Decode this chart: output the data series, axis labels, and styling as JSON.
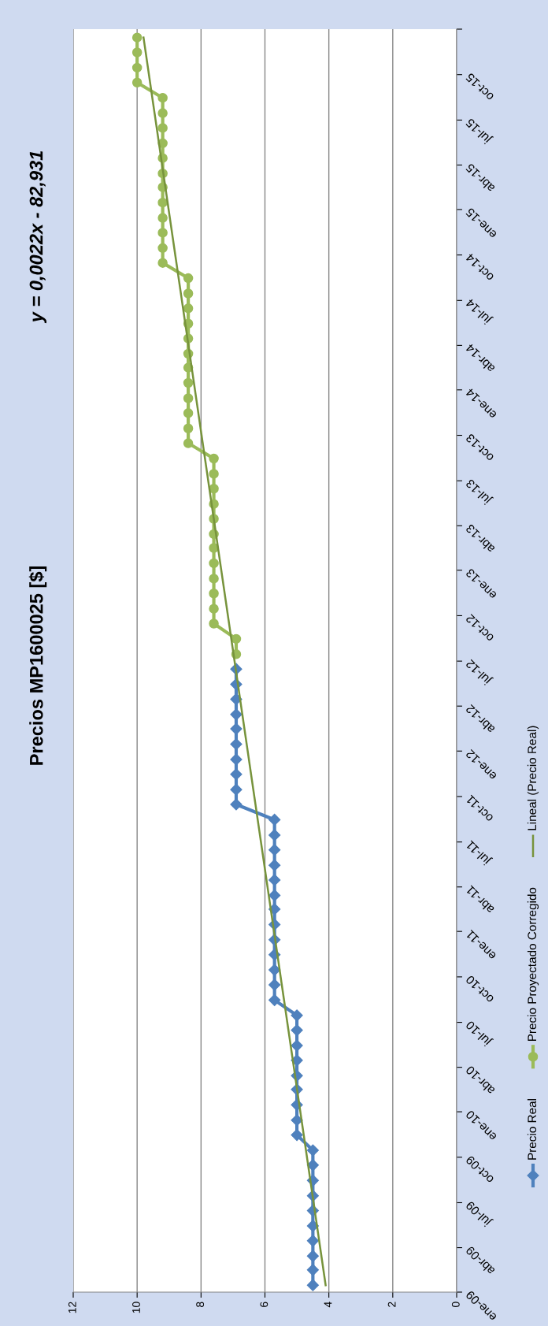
{
  "chart_data": {
    "type": "line",
    "title": "Precios MP1600025 [$]",
    "annotations": [
      "y = 0,0022x - 82,931"
    ],
    "orientation": "horizontal",
    "ylim": [
      "2009-01-01",
      "2016-01-01"
    ],
    "yticks": [
      {
        "value": "2009-01-01",
        "label": "ene-09"
      },
      {
        "value": "2009-04-01",
        "label": "abr-09"
      },
      {
        "value": "2009-07-01",
        "label": "jul-09"
      },
      {
        "value": "2009-10-01",
        "label": "oct-09"
      },
      {
        "value": "2010-01-01",
        "label": "ene-10"
      },
      {
        "value": "2010-04-01",
        "label": "abr-10"
      },
      {
        "value": "2010-07-01",
        "label": "jul-10"
      },
      {
        "value": "2010-10-01",
        "label": "oct-10"
      },
      {
        "value": "2011-01-01",
        "label": "ene-11"
      },
      {
        "value": "2011-04-01",
        "label": "abr-11"
      },
      {
        "value": "2011-07-01",
        "label": "jul-11"
      },
      {
        "value": "2011-10-01",
        "label": "oct-11"
      },
      {
        "value": "2012-01-01",
        "label": "ene-12"
      },
      {
        "value": "2012-04-01",
        "label": "abr-12"
      },
      {
        "value": "2012-07-01",
        "label": "jul-12"
      },
      {
        "value": "2012-10-01",
        "label": "oct-12"
      },
      {
        "value": "2013-01-01",
        "label": "ene-13"
      },
      {
        "value": "2013-04-01",
        "label": "abr-13"
      },
      {
        "value": "2013-07-01",
        "label": "jul-13"
      },
      {
        "value": "2013-10-01",
        "label": "oct-13"
      },
      {
        "value": "2014-01-01",
        "label": "ene-14"
      },
      {
        "value": "2014-04-01",
        "label": "abr-14"
      },
      {
        "value": "2014-07-01",
        "label": "jul-14"
      },
      {
        "value": "2014-10-01",
        "label": "oct-14"
      },
      {
        "value": "2015-01-01",
        "label": "ene-15"
      },
      {
        "value": "2015-04-01",
        "label": "abr-15"
      },
      {
        "value": "2015-07-01",
        "label": "jul-15"
      },
      {
        "value": "2015-10-01",
        "label": "oct-15"
      },
      {
        "value": "2016-01-01",
        "label": null
      }
    ],
    "xlim": [
      12,
      0
    ],
    "xticks": [
      0,
      2,
      4,
      6,
      8,
      10,
      12
    ],
    "grid": "x",
    "legend": "right",
    "series": [
      {
        "name": "Precio Real",
        "color": "#4f81bd",
        "marker": "diamond",
        "x": [
          "2009-01-15",
          "2009-02-15",
          "2009-03-15",
          "2009-04-15",
          "2009-05-15",
          "2009-06-15",
          "2009-07-15",
          "2009-08-15",
          "2009-09-15",
          "2009-10-15",
          "2009-11-15",
          "2009-12-15",
          "2010-01-15",
          "2010-02-15",
          "2010-03-15",
          "2010-04-15",
          "2010-05-15",
          "2010-06-15",
          "2010-07-15",
          "2010-08-15",
          "2010-09-15",
          "2010-10-15",
          "2010-11-15",
          "2010-12-15",
          "2011-01-15",
          "2011-02-15",
          "2011-03-15",
          "2011-04-15",
          "2011-05-15",
          "2011-06-15",
          "2011-07-15",
          "2011-08-15",
          "2011-09-15",
          "2011-10-15",
          "2011-11-15",
          "2011-12-15",
          "2012-01-15",
          "2012-02-15",
          "2012-03-15",
          "2012-04-15",
          "2012-05-15",
          "2012-06-15"
        ],
        "values": [
          4.5,
          4.5,
          4.5,
          4.5,
          4.5,
          4.5,
          4.5,
          4.5,
          4.5,
          4.5,
          5.0,
          5.0,
          5.0,
          5.0,
          5.0,
          5.0,
          5.0,
          5.0,
          5.0,
          5.7,
          5.7,
          5.7,
          5.7,
          5.7,
          5.7,
          5.7,
          5.7,
          5.7,
          5.7,
          5.7,
          5.7,
          5.7,
          6.9,
          6.9,
          6.9,
          6.9,
          6.9,
          6.9,
          6.9,
          6.9,
          6.9,
          6.9
        ]
      },
      {
        "name": "Precio Proyectado Corregido",
        "color": "#9bbb59",
        "marker": "circle",
        "x": [
          "2012-07-15",
          "2012-08-15",
          "2012-09-15",
          "2012-10-15",
          "2012-11-15",
          "2012-12-15",
          "2013-01-15",
          "2013-02-15",
          "2013-03-15",
          "2013-04-15",
          "2013-05-15",
          "2013-06-15",
          "2013-07-15",
          "2013-08-15",
          "2013-09-15",
          "2013-10-15",
          "2013-11-15",
          "2013-12-15",
          "2014-01-15",
          "2014-02-15",
          "2014-03-15",
          "2014-04-15",
          "2014-05-15",
          "2014-06-15",
          "2014-07-15",
          "2014-08-15",
          "2014-09-15",
          "2014-10-15",
          "2014-11-15",
          "2014-12-15",
          "2015-01-15",
          "2015-02-15",
          "2015-03-15",
          "2015-04-15",
          "2015-05-15",
          "2015-06-15",
          "2015-07-15",
          "2015-08-15",
          "2015-09-15",
          "2015-10-15",
          "2015-11-15",
          "2015-12-15"
        ],
        "values": [
          6.9,
          6.9,
          7.6,
          7.6,
          7.6,
          7.6,
          7.6,
          7.6,
          7.6,
          7.6,
          7.6,
          7.6,
          7.6,
          7.6,
          8.4,
          8.4,
          8.4,
          8.4,
          8.4,
          8.4,
          8.4,
          8.4,
          8.4,
          8.4,
          8.4,
          8.4,
          9.2,
          9.2,
          9.2,
          9.2,
          9.2,
          9.2,
          9.2,
          9.2,
          9.2,
          9.2,
          9.2,
          9.2,
          10.0,
          10.0,
          10.0,
          10.0
        ]
      },
      {
        "name": "Lineal (Precio Real)",
        "color": "#77933c",
        "marker": "none",
        "x": [
          "2009-01-15",
          "2015-12-15"
        ],
        "values": [
          4.1,
          9.8
        ]
      }
    ]
  }
}
